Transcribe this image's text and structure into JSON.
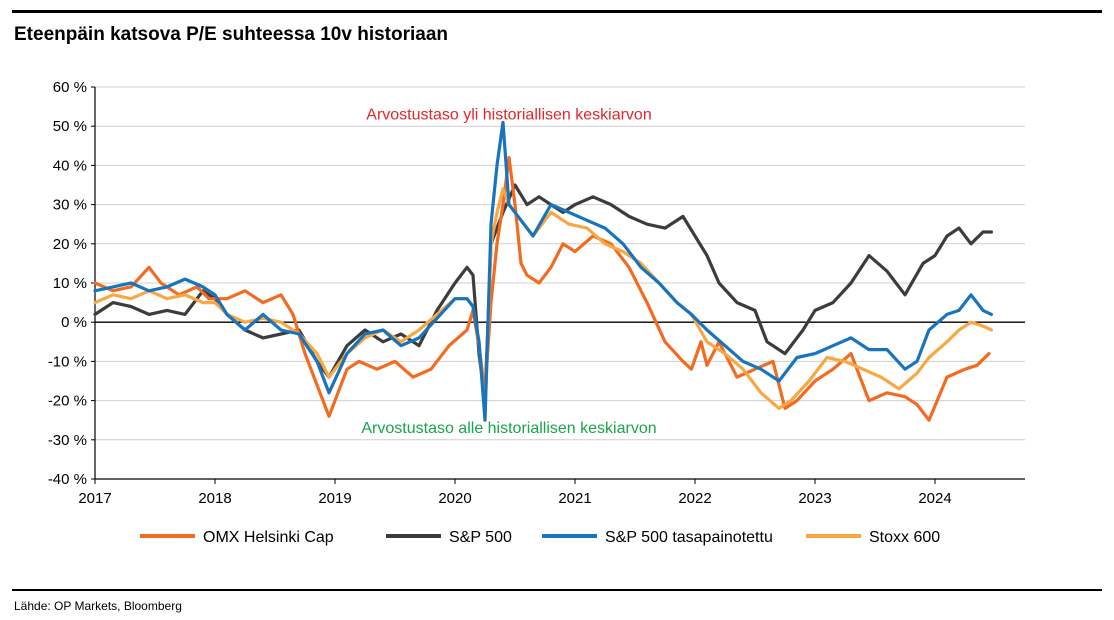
{
  "title": "Eteenpäin katsova P/E suhteessa 10v historiaan",
  "source": "Lähde: OP Markets, Bloomberg",
  "chart_data": {
    "type": "line",
    "title": "Eteenpäin katsova P/E suhteessa 10v historiaan",
    "xlabel": "",
    "ylabel": "",
    "xlim": [
      2017.0,
      2024.75
    ],
    "ylim": [
      -40,
      60
    ],
    "x_ticks": [
      "2017",
      "2018",
      "2019",
      "2020",
      "2021",
      "2022",
      "2023",
      "2024"
    ],
    "x_tick_values": [
      2017,
      2018,
      2019,
      2020,
      2021,
      2022,
      2023,
      2024
    ],
    "y_ticks": [
      "60 %",
      "50 %",
      "40 %",
      "30 %",
      "20 %",
      "10 %",
      "0 %",
      "-10 %",
      "-20 %",
      "-30 %",
      "-40 %"
    ],
    "y_tick_values": [
      60,
      50,
      40,
      30,
      20,
      10,
      0,
      -10,
      -20,
      -30,
      -40
    ],
    "grid": true,
    "legend_position": "bottom",
    "annotations": [
      {
        "text": "Arvostustaso yli historiallisen keskiarvon",
        "x": 2020.45,
        "y": 53,
        "color": "#e3262b"
      },
      {
        "text": "Arvostustaso alle historiallisen keskiarvon",
        "x": 2020.45,
        "y": -27,
        "color": "#1aa64a"
      }
    ],
    "series": [
      {
        "name": "OMX Helsinki Cap",
        "color": "#f26b21",
        "x": [
          2017.0,
          2017.15,
          2017.3,
          2017.45,
          2017.55,
          2017.7,
          2017.85,
          2017.95,
          2018.1,
          2018.25,
          2018.4,
          2018.55,
          2018.65,
          2018.75,
          2018.85,
          2018.95,
          2019.0,
          2019.1,
          2019.2,
          2019.35,
          2019.5,
          2019.65,
          2019.8,
          2019.95,
          2020.1,
          2020.15,
          2020.2,
          2020.25,
          2020.3,
          2020.35,
          2020.4,
          2020.45,
          2020.5,
          2020.55,
          2020.6,
          2020.7,
          2020.8,
          2020.9,
          2021.0,
          2021.15,
          2021.3,
          2021.45,
          2021.6,
          2021.75,
          2021.9,
          2021.97,
          2022.05,
          2022.1,
          2022.2,
          2022.35,
          2022.5,
          2022.65,
          2022.75,
          2022.85,
          2023.0,
          2023.15,
          2023.3,
          2023.45,
          2023.6,
          2023.75,
          2023.85,
          2023.95,
          2024.1,
          2024.25,
          2024.35,
          2024.45
        ],
        "y": [
          10,
          8,
          9,
          14,
          10,
          7,
          9,
          6,
          6,
          8,
          5,
          7,
          2,
          -8,
          -16,
          -24,
          -20,
          -12,
          -10,
          -12,
          -10,
          -14,
          -12,
          -6,
          -2,
          3,
          -6,
          -18,
          5,
          20,
          30,
          42,
          30,
          15,
          12,
          10,
          14,
          20,
          18,
          22,
          20,
          14,
          5,
          -5,
          -10,
          -12,
          -5,
          -11,
          -5,
          -14,
          -12,
          -10,
          -22,
          -20,
          -15,
          -12,
          -8,
          -20,
          -18,
          -19,
          -21,
          -25,
          -14,
          -12,
          -11,
          -8
        ]
      },
      {
        "name": "S&P 500",
        "color": "#3c3c3c",
        "x": [
          2017.0,
          2017.15,
          2017.3,
          2017.45,
          2017.6,
          2017.75,
          2017.9,
          2018.0,
          2018.1,
          2018.25,
          2018.4,
          2018.55,
          2018.7,
          2018.85,
          2018.95,
          2019.1,
          2019.25,
          2019.4,
          2019.55,
          2019.7,
          2019.85,
          2020.0,
          2020.1,
          2020.15,
          2020.2,
          2020.25,
          2020.3,
          2020.4,
          2020.5,
          2020.6,
          2020.7,
          2020.8,
          2020.9,
          2021.0,
          2021.15,
          2021.3,
          2021.45,
          2021.6,
          2021.75,
          2021.9,
          2022.0,
          2022.1,
          2022.2,
          2022.35,
          2022.5,
          2022.6,
          2022.75,
          2022.9,
          2023.0,
          2023.15,
          2023.3,
          2023.45,
          2023.6,
          2023.75,
          2023.9,
          2024.0,
          2024.1,
          2024.2,
          2024.3,
          2024.4,
          2024.47
        ],
        "y": [
          2,
          5,
          4,
          2,
          3,
          2,
          8,
          6,
          2,
          -2,
          -4,
          -3,
          -2,
          -10,
          -14,
          -6,
          -2,
          -5,
          -3,
          -6,
          3,
          10,
          14,
          12,
          -8,
          -20,
          20,
          28,
          35,
          30,
          32,
          30,
          28,
          30,
          32,
          30,
          27,
          25,
          24,
          27,
          22,
          17,
          10,
          5,
          3,
          -5,
          -8,
          -2,
          3,
          5,
          10,
          17,
          13,
          7,
          15,
          17,
          22,
          24,
          20,
          23,
          23
        ]
      },
      {
        "name": "S&P 500 tasapainotettu",
        "color": "#1874bd",
        "x": [
          2017.0,
          2017.15,
          2017.3,
          2017.45,
          2017.6,
          2017.75,
          2017.9,
          2018.0,
          2018.1,
          2018.25,
          2018.4,
          2018.55,
          2018.7,
          2018.85,
          2018.95,
          2019.1,
          2019.25,
          2019.4,
          2019.55,
          2019.7,
          2019.85,
          2020.0,
          2020.1,
          2020.15,
          2020.2,
          2020.25,
          2020.3,
          2020.35,
          2020.4,
          2020.45,
          2020.55,
          2020.65,
          2020.8,
          2020.95,
          2021.1,
          2021.25,
          2021.4,
          2021.55,
          2021.7,
          2021.85,
          2021.97,
          2022.1,
          2022.25,
          2022.4,
          2022.55,
          2022.7,
          2022.85,
          2023.0,
          2023.15,
          2023.3,
          2023.45,
          2023.6,
          2023.75,
          2023.85,
          2023.95,
          2024.1,
          2024.2,
          2024.3,
          2024.4,
          2024.47
        ],
        "y": [
          8,
          9,
          10,
          8,
          9,
          11,
          9,
          7,
          2,
          -2,
          2,
          -2,
          -3,
          -10,
          -18,
          -8,
          -3,
          -2,
          -6,
          -4,
          1,
          6,
          6,
          4,
          -5,
          -25,
          25,
          40,
          51,
          30,
          26,
          22,
          30,
          28,
          26,
          24,
          20,
          14,
          10,
          5,
          2,
          -2,
          -6,
          -10,
          -12,
          -15,
          -9,
          -8,
          -6,
          -4,
          -7,
          -7,
          -12,
          -10,
          -2,
          2,
          3,
          7,
          3,
          2
        ]
      },
      {
        "name": "Stoxx 600",
        "color": "#f8a742",
        "x": [
          2017.0,
          2017.15,
          2017.3,
          2017.45,
          2017.6,
          2017.75,
          2017.9,
          2018.0,
          2018.1,
          2018.25,
          2018.4,
          2018.55,
          2018.7,
          2018.85,
          2018.95,
          2019.1,
          2019.25,
          2019.4,
          2019.55,
          2019.7,
          2019.85,
          2020.0,
          2020.1,
          2020.15,
          2020.2,
          2020.25,
          2020.3,
          2020.35,
          2020.4,
          2020.45,
          2020.55,
          2020.65,
          2020.8,
          2020.95,
          2021.1,
          2021.25,
          2021.4,
          2021.55,
          2021.7,
          2021.85,
          2021.97,
          2022.1,
          2022.25,
          2022.4,
          2022.55,
          2022.7,
          2022.8,
          2022.95,
          2023.1,
          2023.25,
          2023.4,
          2023.55,
          2023.7,
          2023.85,
          2023.95,
          2024.1,
          2024.2,
          2024.3,
          2024.4,
          2024.47
        ],
        "y": [
          5,
          7,
          6,
          8,
          6,
          7,
          5,
          5,
          2,
          0,
          1,
          0,
          -3,
          -8,
          -14,
          -8,
          -4,
          -2,
          -5,
          -2,
          2,
          6,
          6,
          4,
          -5,
          -24,
          20,
          28,
          34,
          30,
          26,
          22,
          28,
          25,
          24,
          20,
          18,
          15,
          10,
          5,
          2,
          -5,
          -8,
          -12,
          -18,
          -22,
          -20,
          -15,
          -9,
          -10,
          -12,
          -14,
          -17,
          -13,
          -9,
          -5,
          -2,
          0,
          -1,
          -2
        ]
      }
    ]
  }
}
